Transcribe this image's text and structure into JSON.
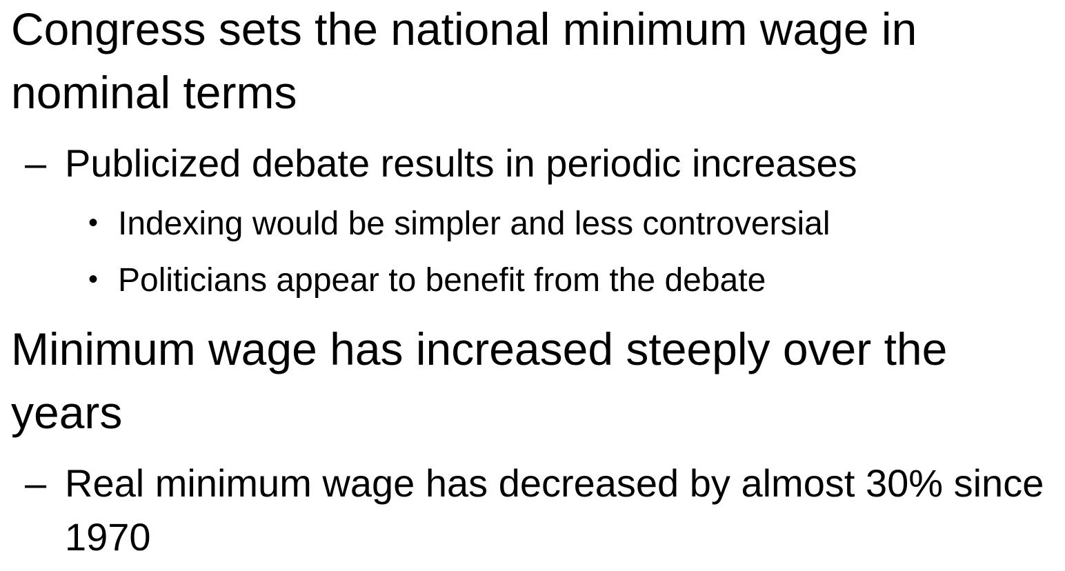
{
  "slide": {
    "bullets": [
      {
        "level": 1,
        "text": "Congress sets the national minimum wage in nominal terms"
      },
      {
        "level": 2,
        "marker": "–",
        "text": "Publicized debate results in periodic increases"
      },
      {
        "level": 3,
        "marker": "•",
        "text": "Indexing would be simpler and less controversial"
      },
      {
        "level": 3,
        "marker": "•",
        "text": "Politicians appear to benefit from the debate"
      },
      {
        "level": 1,
        "text": "Minimum wage has increased steeply over the years"
      },
      {
        "level": 2,
        "marker": "–",
        "text": "Real minimum wage has decreased by almost 30% since 1970"
      }
    ]
  }
}
